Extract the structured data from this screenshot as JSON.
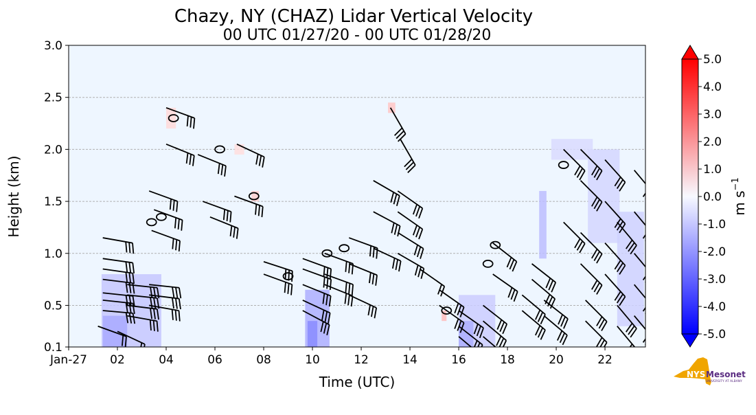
{
  "chart_data": {
    "type": "heatmap",
    "title": "Chazy, NY (CHAZ) Lidar Vertical Velocity",
    "subtitle": "00 UTC 01/27/20 - 00 UTC 01/28/20",
    "xlabel": "Time (UTC)",
    "ylabel": "Height (km)",
    "xlim": [
      0,
      23.66
    ],
    "ylim": [
      0.1,
      3.0
    ],
    "xticks": [
      {
        "v": 0,
        "label": "Jan-27"
      },
      {
        "v": 2,
        "label": "02"
      },
      {
        "v": 4,
        "label": "04"
      },
      {
        "v": 6,
        "label": "06"
      },
      {
        "v": 8,
        "label": "08"
      },
      {
        "v": 10,
        "label": "10"
      },
      {
        "v": 12,
        "label": "12"
      },
      {
        "v": 14,
        "label": "14"
      },
      {
        "v": 16,
        "label": "16"
      },
      {
        "v": 18,
        "label": "18"
      },
      {
        "v": 20,
        "label": "20"
      },
      {
        "v": 22,
        "label": "22"
      }
    ],
    "yticks": [
      {
        "v": 0.1,
        "label": "0.1"
      },
      {
        "v": 0.5,
        "label": "0.5"
      },
      {
        "v": 1.0,
        "label": "1.0"
      },
      {
        "v": 1.5,
        "label": "1.5"
      },
      {
        "v": 2.0,
        "label": "2.0"
      },
      {
        "v": 2.5,
        "label": "2.5"
      },
      {
        "v": 3.0,
        "label": "3.0"
      }
    ],
    "grid": "horizontal dashed",
    "colorbar": {
      "label": "m s",
      "label_exp": "−1",
      "range": [
        -5,
        5
      ],
      "extend": "both",
      "ticks": [
        "5.0",
        "4.0",
        "3.0",
        "2.0",
        "1.0",
        "0.0",
        "-1.0",
        "-2.0",
        "-3.0",
        "-4.0",
        "-5.0"
      ],
      "colors": {
        "max": "#ff0000",
        "mid": "#f7f9ff",
        "min": "#0000ff"
      }
    },
    "background_value": -0.2,
    "shading": [
      [
        1.35,
        3.8,
        0.1,
        0.8,
        -1.0
      ],
      [
        1.4,
        2.4,
        0.1,
        0.4,
        -1.6
      ],
      [
        9.7,
        10.7,
        0.1,
        0.65,
        -1.5
      ],
      [
        9.8,
        10.2,
        0.1,
        0.35,
        -2.2
      ],
      [
        16.0,
        17.5,
        0.1,
        0.6,
        -0.9
      ],
      [
        16.0,
        16.6,
        0.1,
        0.35,
        -1.5
      ],
      [
        19.3,
        19.6,
        0.95,
        1.6,
        -1.2
      ],
      [
        21.3,
        22.6,
        1.1,
        2.0,
        -0.7
      ],
      [
        22.5,
        23.6,
        0.3,
        1.4,
        -0.8
      ],
      [
        19.8,
        21.5,
        1.9,
        2.1,
        -0.6
      ],
      [
        4.0,
        4.4,
        2.2,
        2.4,
        0.6
      ],
      [
        6.8,
        7.2,
        1.95,
        2.05,
        0.5
      ],
      [
        13.1,
        13.4,
        2.35,
        2.45,
        1.0
      ],
      [
        15.3,
        15.5,
        0.35,
        0.45,
        1.2
      ],
      [
        7.5,
        7.8,
        1.5,
        1.6,
        0.8
      ]
    ],
    "barbs": [
      [
        1.4,
        1.15,
        30,
        100
      ],
      [
        1.4,
        0.95,
        30,
        98
      ],
      [
        1.4,
        0.85,
        30,
        98
      ],
      [
        1.4,
        0.75,
        30,
        97
      ],
      [
        1.4,
        0.62,
        30,
        96
      ],
      [
        1.4,
        0.55,
        30,
        96
      ],
      [
        1.4,
        0.45,
        30,
        95
      ],
      [
        2.4,
        0.7,
        30,
        96
      ],
      [
        2.4,
        0.6,
        30,
        96
      ],
      [
        2.4,
        0.5,
        30,
        97
      ],
      [
        2.4,
        0.4,
        25,
        100
      ],
      [
        3.3,
        0.7,
        30,
        96
      ],
      [
        3.3,
        0.6,
        30,
        97
      ],
      [
        3.3,
        0.5,
        30,
        100
      ],
      [
        1.2,
        0.3,
        20,
        110
      ],
      [
        2.0,
        0.25,
        20,
        115
      ],
      [
        3.3,
        1.6,
        30,
        110
      ],
      [
        3.5,
        1.42,
        30,
        110
      ],
      [
        3.4,
        1.22,
        30,
        110
      ],
      [
        4.0,
        2.4,
        25,
        110
      ],
      [
        4.0,
        2.05,
        25,
        112
      ],
      [
        5.3,
        1.95,
        25,
        112
      ],
      [
        5.5,
        1.5,
        30,
        110
      ],
      [
        5.8,
        1.35,
        25,
        112
      ],
      [
        6.8,
        1.55,
        25,
        110
      ],
      [
        6.9,
        2.05,
        25,
        115
      ],
      [
        8.0,
        0.92,
        30,
        108
      ],
      [
        8.0,
        0.8,
        25,
        110
      ],
      [
        9.6,
        0.95,
        30,
        110
      ],
      [
        9.6,
        0.85,
        30,
        110
      ],
      [
        9.6,
        0.7,
        30,
        112
      ],
      [
        9.6,
        0.55,
        30,
        115
      ],
      [
        9.6,
        0.45,
        25,
        118
      ],
      [
        10.5,
        1.0,
        30,
        110
      ],
      [
        10.5,
        0.8,
        30,
        110
      ],
      [
        10.5,
        0.7,
        25,
        112
      ],
      [
        11.5,
        1.15,
        30,
        110
      ],
      [
        11.5,
        0.9,
        25,
        112
      ],
      [
        11.5,
        0.6,
        25,
        115
      ],
      [
        12.5,
        1.7,
        25,
        120
      ],
      [
        12.5,
        1.4,
        25,
        118
      ],
      [
        12.5,
        1.05,
        25,
        115
      ],
      [
        13.2,
        2.4,
        25,
        150
      ],
      [
        13.6,
        2.1,
        25,
        150
      ],
      [
        13.5,
        1.6,
        25,
        125
      ],
      [
        13.5,
        1.4,
        25,
        125
      ],
      [
        13.5,
        1.2,
        25,
        122
      ],
      [
        13.5,
        1.0,
        25,
        120
      ],
      [
        14.4,
        0.85,
        20,
        125
      ],
      [
        15.2,
        0.65,
        25,
        125
      ],
      [
        15.2,
        0.5,
        25,
        125
      ],
      [
        16.0,
        0.45,
        25,
        125
      ],
      [
        16.0,
        0.3,
        25,
        128
      ],
      [
        16.0,
        0.2,
        25,
        130
      ],
      [
        17.0,
        0.5,
        25,
        128
      ],
      [
        17.0,
        0.35,
        25,
        130
      ],
      [
        17.0,
        0.2,
        25,
        130
      ],
      [
        17.4,
        1.1,
        25,
        128
      ],
      [
        17.4,
        0.8,
        25,
        125
      ],
      [
        18.6,
        0.6,
        25,
        130
      ],
      [
        18.6,
        0.45,
        25,
        130
      ],
      [
        19.0,
        0.9,
        25,
        128
      ],
      [
        19.0,
        0.75,
        25,
        130
      ],
      [
        19.5,
        0.55,
        25,
        128
      ],
      [
        19.5,
        0.4,
        25,
        130
      ],
      [
        20.3,
        2.0,
        25,
        135
      ],
      [
        20.3,
        1.3,
        25,
        135
      ],
      [
        21.0,
        2.0,
        25,
        135
      ],
      [
        21.0,
        1.7,
        25,
        135
      ],
      [
        21.0,
        1.2,
        25,
        135
      ],
      [
        21.0,
        0.9,
        25,
        135
      ],
      [
        21.2,
        0.55,
        25,
        135
      ],
      [
        21.2,
        0.35,
        25,
        135
      ],
      [
        22.0,
        1.9,
        25,
        138
      ],
      [
        22.0,
        1.5,
        25,
        138
      ],
      [
        22.0,
        1.1,
        25,
        138
      ],
      [
        22.0,
        0.8,
        25,
        138
      ],
      [
        22.5,
        0.5,
        25,
        140
      ],
      [
        22.5,
        0.3,
        25,
        140
      ],
      [
        22.5,
        1.3,
        25,
        140
      ],
      [
        23.2,
        1.8,
        25,
        140
      ],
      [
        23.2,
        1.4,
        25,
        140
      ],
      [
        23.2,
        1.0,
        25,
        140
      ],
      [
        23.2,
        0.7,
        25,
        140
      ],
      [
        23.2,
        0.4,
        25,
        140
      ]
    ],
    "contours": [
      [
        4.3,
        2.3
      ],
      [
        6.2,
        2.0
      ],
      [
        3.4,
        1.3
      ],
      [
        3.8,
        1.35
      ],
      [
        7.6,
        1.55
      ],
      [
        10.6,
        1.0
      ],
      [
        11.3,
        1.05
      ],
      [
        9.0,
        0.78
      ],
      [
        17.5,
        1.08
      ],
      [
        17.2,
        0.9
      ],
      [
        15.5,
        0.45
      ],
      [
        20.3,
        1.85
      ]
    ]
  },
  "logo": {
    "text1": "NYS",
    "text2": "Mesonet",
    "text3": "UNIVERSITY AT ALBANY"
  }
}
